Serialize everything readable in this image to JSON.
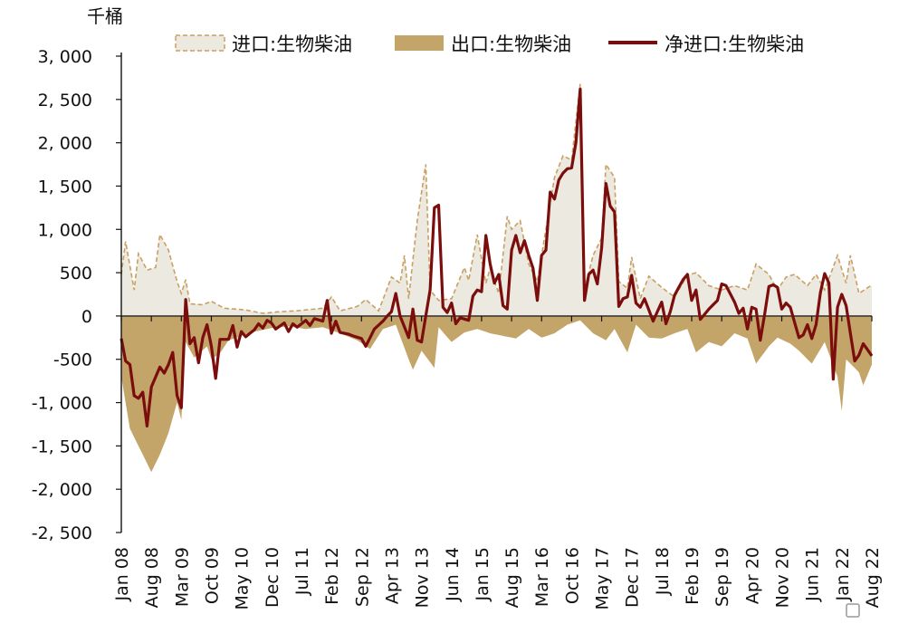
{
  "chart_data": {
    "type": "area",
    "unit": "千桶",
    "ylim": [
      -2500,
      3000
    ],
    "yticks": [
      3000,
      2500,
      2000,
      1500,
      1000,
      500,
      0,
      -500,
      -1000,
      -1500,
      -2000,
      -2500
    ],
    "ytick_labels": [
      "3, 000",
      "2, 500",
      "2, 000",
      "1, 500",
      "1, 000",
      "500",
      "0",
      "-500",
      "-1, 000",
      "-1, 500",
      "-2, 000",
      "-2, 500"
    ],
    "xtick_labels": [
      "Jan 08",
      "Aug 08",
      "Mar 09",
      "Oct 09",
      "May 10",
      "Dec 10",
      "Jul 11",
      "Feb 12",
      "Sep 12",
      "Apr 13",
      "Nov 13",
      "Jun 14",
      "Jan 15",
      "Aug 15",
      "Mar 16",
      "Oct 16",
      "May 17",
      "Dec 17",
      "Jul 18",
      "Feb 19",
      "Sep 19",
      "Apr 20",
      "Nov 20",
      "Jun 21",
      "Jan 22",
      "Aug 22"
    ],
    "x_start": "2008-01",
    "x_end": "2022-08",
    "legend_position": "top",
    "legend": [
      {
        "label": "进口:生物柴油",
        "style": "dashed-area"
      },
      {
        "label": "出口:生物柴油",
        "style": "filled-area"
      },
      {
        "label": "净进口:生物柴油",
        "style": "line"
      }
    ],
    "colors": {
      "imports_fill": "#ece9e0",
      "imports_edge": "#c9a063",
      "exports_fill": "#c3a469",
      "net_line": "#7b0d0d"
    },
    "anchors": {
      "imports": [
        [
          "2008-01",
          480
        ],
        [
          "2008-02",
          860
        ],
        [
          "2008-04",
          300
        ],
        [
          "2008-05",
          720
        ],
        [
          "2008-07",
          530
        ],
        [
          "2008-09",
          560
        ],
        [
          "2008-10",
          940
        ],
        [
          "2008-12",
          760
        ],
        [
          "2009-02",
          400
        ],
        [
          "2009-03",
          260
        ],
        [
          "2009-04",
          420
        ],
        [
          "2009-05",
          140
        ],
        [
          "2009-08",
          130
        ],
        [
          "2009-10",
          170
        ],
        [
          "2010-01",
          90
        ],
        [
          "2010-06",
          70
        ],
        [
          "2010-10",
          30
        ],
        [
          "2011-02",
          50
        ],
        [
          "2011-06",
          60
        ],
        [
          "2011-12",
          90
        ],
        [
          "2012-02",
          220
        ],
        [
          "2012-04",
          60
        ],
        [
          "2012-08",
          110
        ],
        [
          "2012-10",
          190
        ],
        [
          "2013-01",
          60
        ],
        [
          "2013-04",
          450
        ],
        [
          "2013-06",
          380
        ],
        [
          "2013-07",
          700
        ],
        [
          "2013-08",
          200
        ],
        [
          "2013-10",
          1100
        ],
        [
          "2013-12",
          1750
        ],
        [
          "2014-01",
          300
        ],
        [
          "2014-03",
          180
        ],
        [
          "2014-06",
          200
        ],
        [
          "2014-09",
          560
        ],
        [
          "2014-10",
          410
        ],
        [
          "2014-12",
          940
        ],
        [
          "2015-02",
          380
        ],
        [
          "2015-03",
          550
        ],
        [
          "2015-05",
          260
        ],
        [
          "2015-07",
          1150
        ],
        [
          "2015-08",
          1000
        ],
        [
          "2015-10",
          1100
        ],
        [
          "2015-12",
          600
        ],
        [
          "2016-02",
          400
        ],
        [
          "2016-04",
          1000
        ],
        [
          "2016-06",
          1600
        ],
        [
          "2016-08",
          1850
        ],
        [
          "2016-10",
          1800
        ],
        [
          "2016-12",
          2680
        ],
        [
          "2017-01",
          300
        ],
        [
          "2017-03",
          700
        ],
        [
          "2017-05",
          900
        ],
        [
          "2017-06",
          1750
        ],
        [
          "2017-08",
          1600
        ],
        [
          "2017-09",
          400
        ],
        [
          "2017-11",
          320
        ],
        [
          "2017-12",
          680
        ],
        [
          "2018-02",
          200
        ],
        [
          "2018-04",
          460
        ],
        [
          "2018-07",
          330
        ],
        [
          "2018-10",
          220
        ],
        [
          "2019-01",
          470
        ],
        [
          "2019-03",
          500
        ],
        [
          "2019-06",
          350
        ],
        [
          "2019-09",
          300
        ],
        [
          "2019-12",
          350
        ],
        [
          "2020-03",
          300
        ],
        [
          "2020-05",
          600
        ],
        [
          "2020-08",
          480
        ],
        [
          "2020-10",
          300
        ],
        [
          "2020-12",
          450
        ],
        [
          "2021-02",
          480
        ],
        [
          "2021-05",
          350
        ],
        [
          "2021-07",
          480
        ],
        [
          "2021-09",
          300
        ],
        [
          "2021-12",
          700
        ],
        [
          "2022-02",
          380
        ],
        [
          "2022-03",
          700
        ],
        [
          "2022-05",
          260
        ],
        [
          "2022-08",
          360
        ]
      ],
      "exports": [
        [
          "2008-01",
          -700
        ],
        [
          "2008-03",
          -1300
        ],
        [
          "2008-05",
          -1500
        ],
        [
          "2008-07",
          -1700
        ],
        [
          "2008-08",
          -1800
        ],
        [
          "2008-10",
          -1600
        ],
        [
          "2008-12",
          -1350
        ],
        [
          "2009-02",
          -1000
        ],
        [
          "2009-03",
          -1200
        ],
        [
          "2009-04",
          -300
        ],
        [
          "2009-06",
          -480
        ],
        [
          "2009-09",
          -350
        ],
        [
          "2009-10",
          -500
        ],
        [
          "2009-12",
          -430
        ],
        [
          "2010-02",
          -280
        ],
        [
          "2010-05",
          -230
        ],
        [
          "2010-08",
          -180
        ],
        [
          "2010-12",
          -140
        ],
        [
          "2011-04",
          -120
        ],
        [
          "2011-08",
          -150
        ],
        [
          "2011-12",
          -130
        ],
        [
          "2012-04",
          -200
        ],
        [
          "2012-08",
          -280
        ],
        [
          "2012-11",
          -380
        ],
        [
          "2013-02",
          -150
        ],
        [
          "2013-05",
          -100
        ],
        [
          "2013-08",
          -500
        ],
        [
          "2013-09",
          -620
        ],
        [
          "2013-11",
          -400
        ],
        [
          "2014-02",
          -600
        ],
        [
          "2014-03",
          -130
        ],
        [
          "2014-06",
          -300
        ],
        [
          "2014-09",
          -190
        ],
        [
          "2014-12",
          -150
        ],
        [
          "2015-03",
          -200
        ],
        [
          "2015-06",
          -230
        ],
        [
          "2015-09",
          -260
        ],
        [
          "2015-12",
          -150
        ],
        [
          "2016-03",
          -250
        ],
        [
          "2016-06",
          -200
        ],
        [
          "2016-09",
          -100
        ],
        [
          "2016-12",
          -50
        ],
        [
          "2017-03",
          -200
        ],
        [
          "2017-06",
          -280
        ],
        [
          "2017-08",
          -150
        ],
        [
          "2017-11",
          -420
        ],
        [
          "2018-01",
          -100
        ],
        [
          "2018-04",
          -250
        ],
        [
          "2018-07",
          -260
        ],
        [
          "2018-10",
          -200
        ],
        [
          "2019-01",
          -150
        ],
        [
          "2019-03",
          -420
        ],
        [
          "2019-06",
          -300
        ],
        [
          "2019-09",
          -350
        ],
        [
          "2019-12",
          -200
        ],
        [
          "2020-03",
          -260
        ],
        [
          "2020-05",
          -550
        ],
        [
          "2020-08",
          -350
        ],
        [
          "2020-10",
          -250
        ],
        [
          "2021-01",
          -320
        ],
        [
          "2021-03",
          -400
        ],
        [
          "2021-06",
          -550
        ],
        [
          "2021-09",
          -300
        ],
        [
          "2021-12",
          -700
        ],
        [
          "2022-01",
          -1100
        ],
        [
          "2022-02",
          -500
        ],
        [
          "2022-05",
          -650
        ],
        [
          "2022-06",
          -800
        ],
        [
          "2022-08",
          -560
        ]
      ],
      "net": [
        [
          "2008-01",
          -260
        ],
        [
          "2008-02",
          -520
        ],
        [
          "2008-03",
          -560
        ],
        [
          "2008-04",
          -920
        ],
        [
          "2008-05",
          -950
        ],
        [
          "2008-06",
          -880
        ],
        [
          "2008-07",
          -1270
        ],
        [
          "2008-08",
          -820
        ],
        [
          "2008-10",
          -590
        ],
        [
          "2008-11",
          -660
        ],
        [
          "2008-12",
          -560
        ],
        [
          "2009-01",
          -420
        ],
        [
          "2009-02",
          -920
        ],
        [
          "2009-03",
          -1060
        ],
        [
          "2009-04",
          190
        ],
        [
          "2009-05",
          -320
        ],
        [
          "2009-06",
          -250
        ],
        [
          "2009-07",
          -540
        ],
        [
          "2009-08",
          -250
        ],
        [
          "2009-09",
          -100
        ],
        [
          "2009-10",
          -350
        ],
        [
          "2009-11",
          -720
        ],
        [
          "2009-12",
          -270
        ],
        [
          "2010-02",
          -270
        ],
        [
          "2010-03",
          -110
        ],
        [
          "2010-04",
          -360
        ],
        [
          "2010-05",
          -180
        ],
        [
          "2010-06",
          -240
        ],
        [
          "2010-08",
          -160
        ],
        [
          "2010-09",
          -90
        ],
        [
          "2010-10",
          -140
        ],
        [
          "2010-11",
          -50
        ],
        [
          "2010-12",
          -80
        ],
        [
          "2011-01",
          -150
        ],
        [
          "2011-03",
          -80
        ],
        [
          "2011-04",
          -180
        ],
        [
          "2011-05",
          -90
        ],
        [
          "2011-06",
          -130
        ],
        [
          "2011-08",
          -50
        ],
        [
          "2011-09",
          -110
        ],
        [
          "2011-10",
          -30
        ],
        [
          "2011-12",
          -60
        ],
        [
          "2012-01",
          180
        ],
        [
          "2012-02",
          -200
        ],
        [
          "2012-03",
          -60
        ],
        [
          "2012-04",
          -190
        ],
        [
          "2012-06",
          -210
        ],
        [
          "2012-07",
          -230
        ],
        [
          "2012-09",
          -260
        ],
        [
          "2012-10",
          -350
        ],
        [
          "2012-12",
          -150
        ],
        [
          "2013-02",
          -60
        ],
        [
          "2013-03",
          0
        ],
        [
          "2013-04",
          50
        ],
        [
          "2013-05",
          260
        ],
        [
          "2013-06",
          0
        ],
        [
          "2013-08",
          -250
        ],
        [
          "2013-09",
          80
        ],
        [
          "2013-10",
          -280
        ],
        [
          "2013-11",
          -300
        ],
        [
          "2014-01",
          300
        ],
        [
          "2014-02",
          1250
        ],
        [
          "2014-03",
          1280
        ],
        [
          "2014-04",
          100
        ],
        [
          "2014-05",
          40
        ],
        [
          "2014-06",
          150
        ],
        [
          "2014-07",
          -90
        ],
        [
          "2014-08",
          -20
        ],
        [
          "2014-10",
          -50
        ],
        [
          "2014-11",
          230
        ],
        [
          "2014-12",
          300
        ],
        [
          "2015-01",
          280
        ],
        [
          "2015-02",
          930
        ],
        [
          "2015-03",
          600
        ],
        [
          "2015-04",
          380
        ],
        [
          "2015-05",
          480
        ],
        [
          "2015-06",
          120
        ],
        [
          "2015-07",
          80
        ],
        [
          "2015-08",
          760
        ],
        [
          "2015-09",
          930
        ],
        [
          "2015-10",
          730
        ],
        [
          "2015-11",
          870
        ],
        [
          "2015-12",
          700
        ],
        [
          "2016-01",
          550
        ],
        [
          "2016-02",
          180
        ],
        [
          "2016-03",
          700
        ],
        [
          "2016-04",
          760
        ],
        [
          "2016-05",
          1430
        ],
        [
          "2016-06",
          1350
        ],
        [
          "2016-07",
          1570
        ],
        [
          "2016-08",
          1650
        ],
        [
          "2016-09",
          1700
        ],
        [
          "2016-10",
          1710
        ],
        [
          "2016-11",
          2000
        ],
        [
          "2016-12",
          2620
        ],
        [
          "2017-01",
          180
        ],
        [
          "2017-02",
          480
        ],
        [
          "2017-03",
          530
        ],
        [
          "2017-04",
          370
        ],
        [
          "2017-05",
          790
        ],
        [
          "2017-06",
          1530
        ],
        [
          "2017-07",
          1270
        ],
        [
          "2017-08",
          1200
        ],
        [
          "2017-09",
          110
        ],
        [
          "2017-10",
          200
        ],
        [
          "2017-11",
          220
        ],
        [
          "2017-12",
          470
        ],
        [
          "2018-01",
          150
        ],
        [
          "2018-02",
          100
        ],
        [
          "2018-03",
          200
        ],
        [
          "2018-05",
          -60
        ],
        [
          "2018-07",
          160
        ],
        [
          "2018-08",
          -90
        ],
        [
          "2018-09",
          50
        ],
        [
          "2018-10",
          240
        ],
        [
          "2018-12",
          420
        ],
        [
          "2019-01",
          480
        ],
        [
          "2019-02",
          180
        ],
        [
          "2019-03",
          300
        ],
        [
          "2019-04",
          -40
        ],
        [
          "2019-06",
          80
        ],
        [
          "2019-08",
          180
        ],
        [
          "2019-09",
          370
        ],
        [
          "2019-10",
          350
        ],
        [
          "2019-12",
          160
        ],
        [
          "2020-01",
          30
        ],
        [
          "2020-02",
          90
        ],
        [
          "2020-03",
          -150
        ],
        [
          "2020-04",
          100
        ],
        [
          "2020-05",
          80
        ],
        [
          "2020-06",
          -280
        ],
        [
          "2020-07",
          20
        ],
        [
          "2020-08",
          340
        ],
        [
          "2020-09",
          360
        ],
        [
          "2020-10",
          330
        ],
        [
          "2020-11",
          80
        ],
        [
          "2020-12",
          150
        ],
        [
          "2021-01",
          100
        ],
        [
          "2021-03",
          -250
        ],
        [
          "2021-04",
          -220
        ],
        [
          "2021-05",
          -100
        ],
        [
          "2021-06",
          -260
        ],
        [
          "2021-07",
          -100
        ],
        [
          "2021-08",
          270
        ],
        [
          "2021-09",
          490
        ],
        [
          "2021-10",
          380
        ],
        [
          "2021-11",
          -730
        ],
        [
          "2021-12",
          100
        ],
        [
          "2022-01",
          250
        ],
        [
          "2022-02",
          120
        ],
        [
          "2022-04",
          -520
        ],
        [
          "2022-05",
          -450
        ],
        [
          "2022-06",
          -320
        ],
        [
          "2022-08",
          -460
        ]
      ]
    }
  }
}
